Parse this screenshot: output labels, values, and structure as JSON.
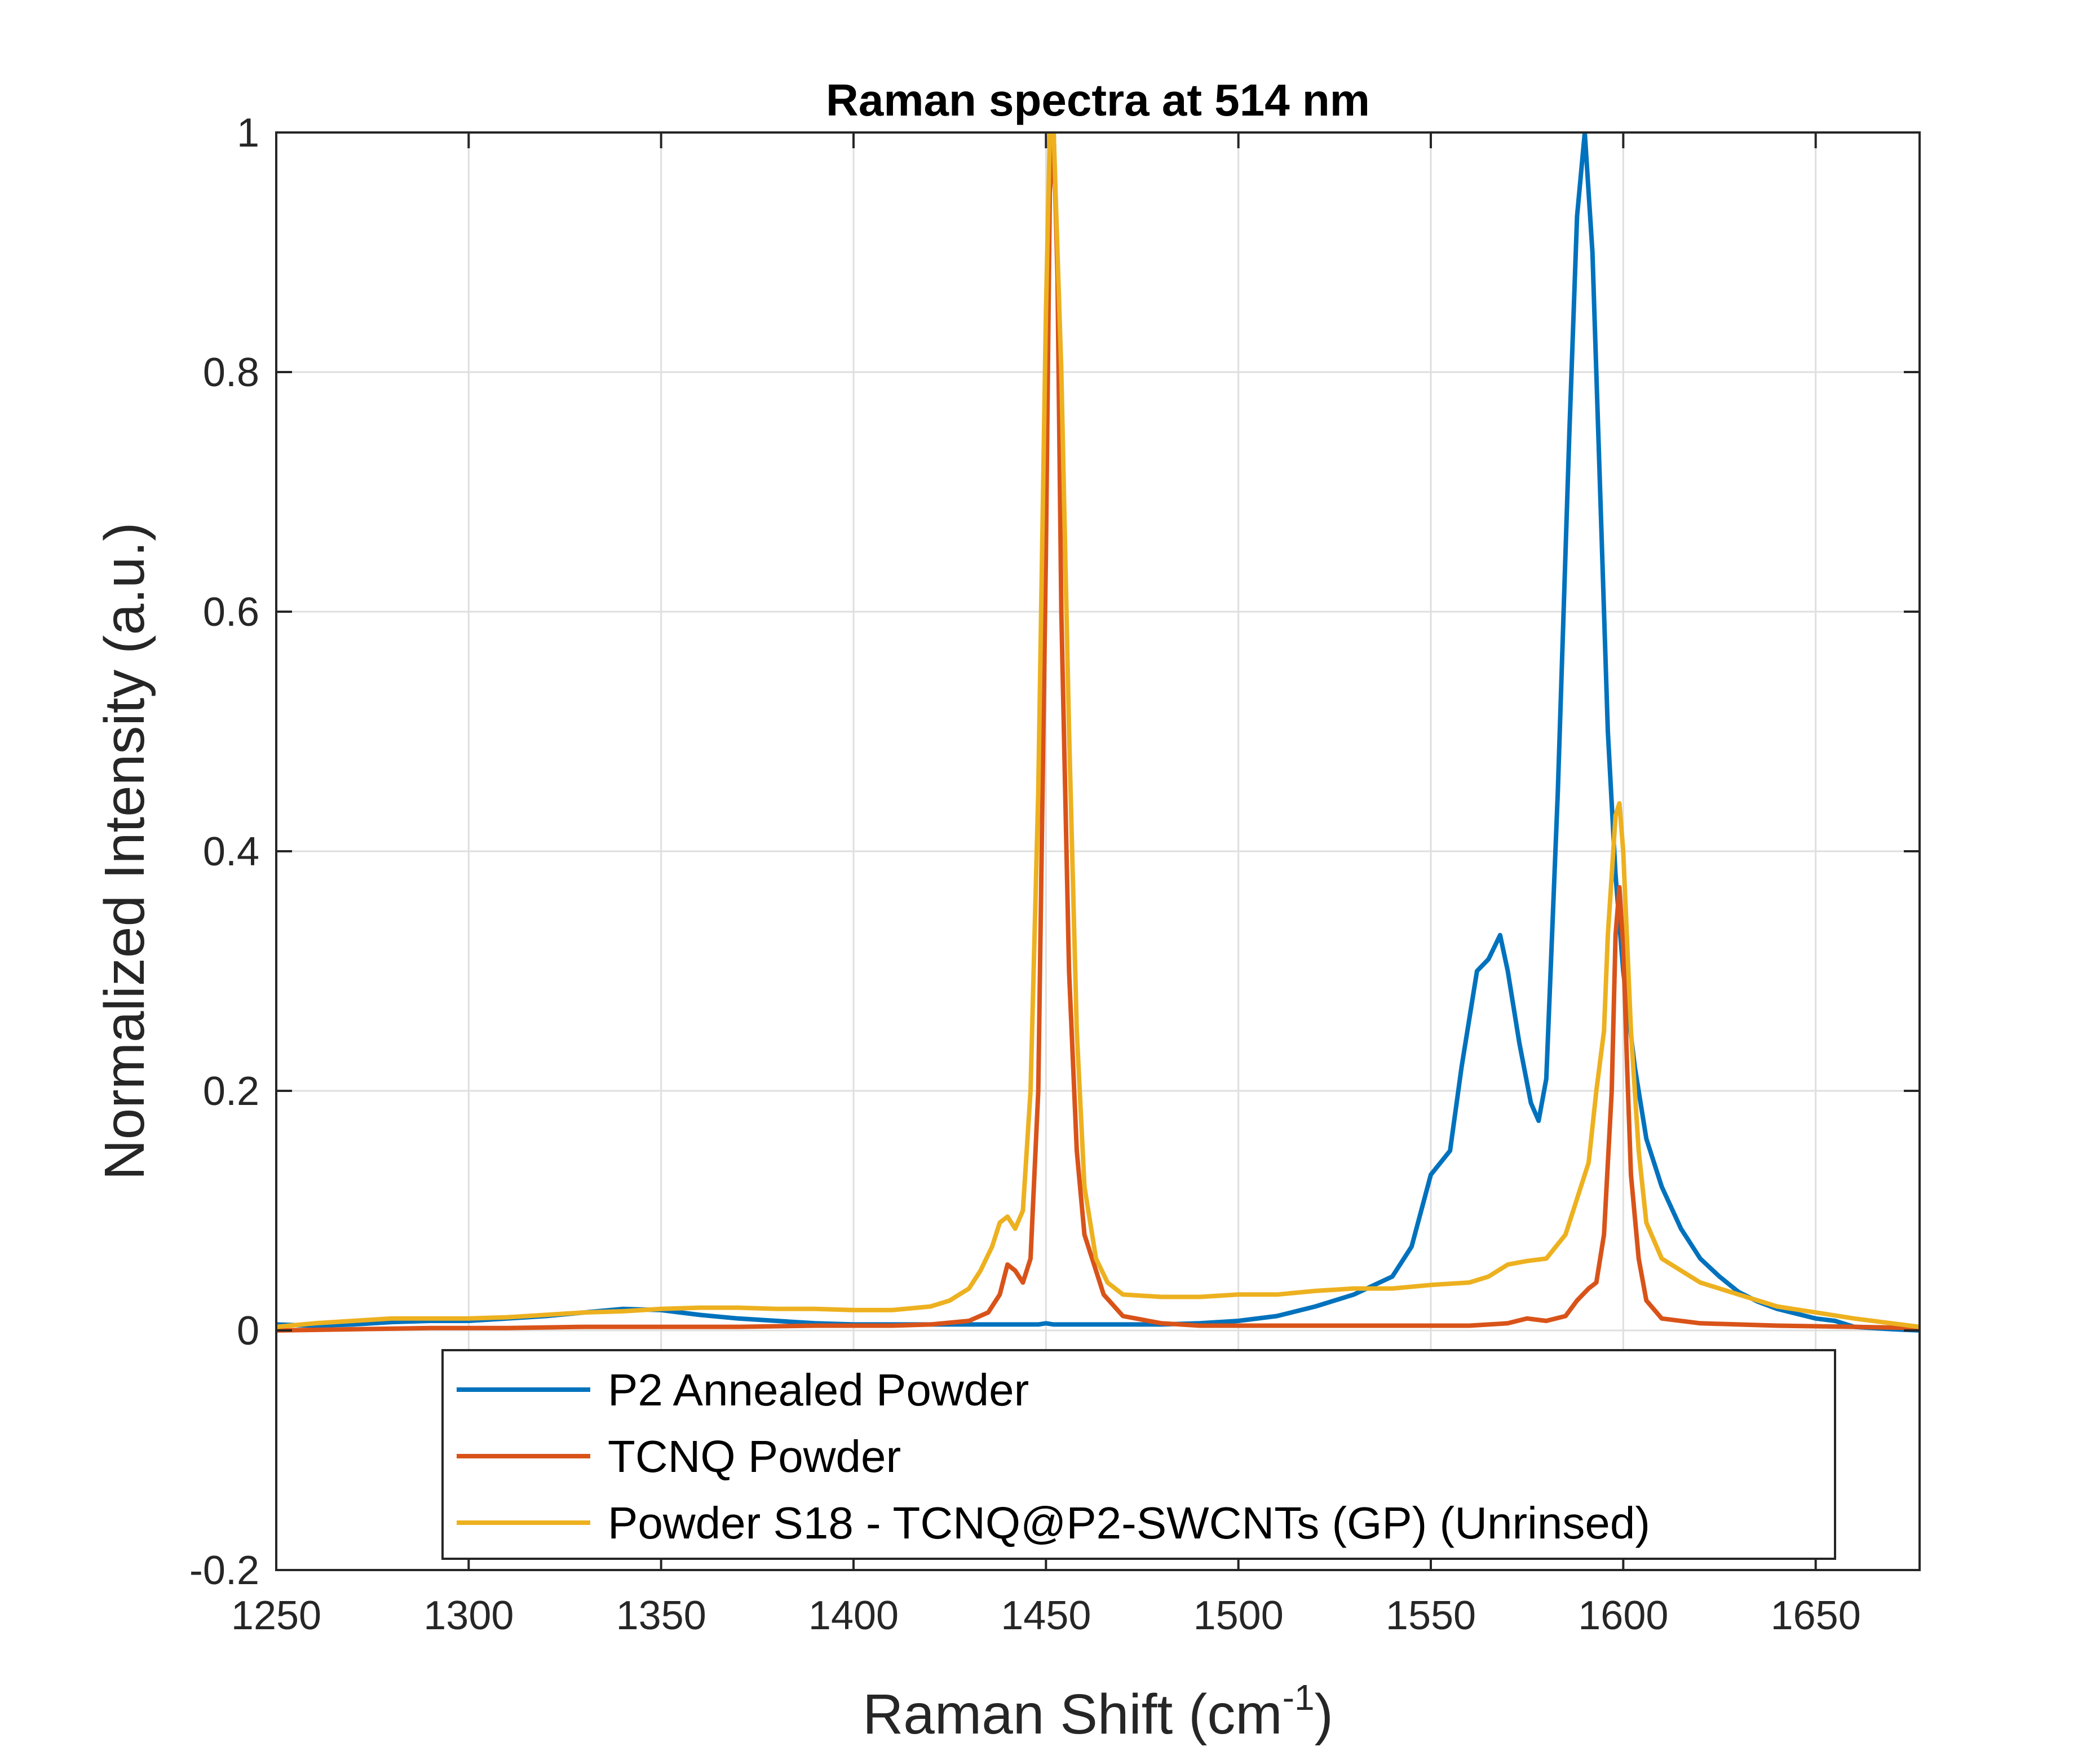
{
  "chart_data": {
    "type": "line",
    "title": "Raman spectra at 514 nm",
    "xlabel": "Raman Shift (cm",
    "xlabel_superscript": "-1",
    "xlabel_suffix": ")",
    "ylabel": "Normalized Intensity (a.u.)",
    "xlim": [
      1250,
      1677
    ],
    "ylim": [
      -0.2,
      1
    ],
    "x_ticks": [
      "1250",
      "1300",
      "1350",
      "1400",
      "1450",
      "1500",
      "1550",
      "1600",
      "1650"
    ],
    "y_ticks": [
      "-0.2",
      "0",
      "0.2",
      "0.4",
      "0.6",
      "0.8",
      "1"
    ],
    "grid": true,
    "legend_position": "bottom-center",
    "series": [
      {
        "name": "P2 Annealed Powder",
        "color": "#0072BD",
        "x": [
          1250,
          1260,
          1270,
          1280,
          1290,
          1300,
          1310,
          1320,
          1330,
          1340,
          1350,
          1360,
          1370,
          1380,
          1390,
          1400,
          1410,
          1420,
          1430,
          1440,
          1445,
          1448,
          1450,
          1452,
          1455,
          1460,
          1470,
          1480,
          1490,
          1500,
          1510,
          1520,
          1530,
          1540,
          1545,
          1550,
          1555,
          1558,
          1562,
          1565,
          1568,
          1570,
          1573,
          1576,
          1578,
          1580,
          1583,
          1586,
          1588,
          1590,
          1592,
          1594,
          1596,
          1598,
          1600,
          1603,
          1606,
          1610,
          1615,
          1620,
          1625,
          1630,
          1635,
          1640,
          1645,
          1650,
          1655,
          1660,
          1665,
          1670,
          1677
        ],
        "y": [
          0.005,
          0.004,
          0.005,
          0.007,
          0.008,
          0.008,
          0.01,
          0.012,
          0.015,
          0.018,
          0.017,
          0.013,
          0.01,
          0.008,
          0.006,
          0.005,
          0.005,
          0.005,
          0.005,
          0.005,
          0.005,
          0.005,
          0.006,
          0.005,
          0.005,
          0.005,
          0.005,
          0.005,
          0.006,
          0.008,
          0.012,
          0.02,
          0.03,
          0.045,
          0.07,
          0.13,
          0.15,
          0.22,
          0.3,
          0.31,
          0.33,
          0.3,
          0.24,
          0.19,
          0.175,
          0.21,
          0.45,
          0.75,
          0.93,
          1.0,
          0.9,
          0.7,
          0.5,
          0.38,
          0.3,
          0.22,
          0.16,
          0.12,
          0.085,
          0.06,
          0.045,
          0.032,
          0.024,
          0.018,
          0.014,
          0.01,
          0.008,
          0.003,
          0.002,
          0.001,
          0.0
        ]
      },
      {
        "name": "TCNQ Powder",
        "color": "#D95319",
        "x": [
          1250,
          1270,
          1290,
          1310,
          1330,
          1350,
          1370,
          1390,
          1410,
          1420,
          1430,
          1435,
          1438,
          1440,
          1442,
          1444,
          1446,
          1448,
          1450,
          1451,
          1452,
          1453,
          1454,
          1456,
          1458,
          1460,
          1465,
          1470,
          1480,
          1490,
          1500,
          1520,
          1540,
          1560,
          1570,
          1575,
          1580,
          1585,
          1588,
          1591,
          1593,
          1595,
          1597,
          1598,
          1599,
          1600,
          1601,
          1602,
          1604,
          1606,
          1610,
          1620,
          1640,
          1660,
          1677
        ],
        "y": [
          0.0,
          0.001,
          0.002,
          0.002,
          0.003,
          0.003,
          0.003,
          0.004,
          0.004,
          0.005,
          0.008,
          0.015,
          0.03,
          0.055,
          0.05,
          0.04,
          0.06,
          0.2,
          0.65,
          0.95,
          1.0,
          0.88,
          0.6,
          0.3,
          0.15,
          0.08,
          0.03,
          0.012,
          0.006,
          0.004,
          0.004,
          0.004,
          0.004,
          0.004,
          0.006,
          0.01,
          0.008,
          0.012,
          0.025,
          0.035,
          0.04,
          0.08,
          0.2,
          0.33,
          0.37,
          0.32,
          0.22,
          0.13,
          0.06,
          0.025,
          0.01,
          0.006,
          0.004,
          0.003,
          0.002
        ]
      },
      {
        "name": "Powder S18 - TCNQ@P2-SWCNTs (GP) (Unrinsed)",
        "color": "#EDB120",
        "x": [
          1250,
          1260,
          1270,
          1280,
          1290,
          1300,
          1310,
          1320,
          1330,
          1340,
          1350,
          1360,
          1370,
          1380,
          1390,
          1400,
          1410,
          1420,
          1425,
          1430,
          1433,
          1436,
          1438,
          1440,
          1442,
          1444,
          1446,
          1448,
          1450,
          1451,
          1452,
          1454,
          1456,
          1458,
          1460,
          1463,
          1466,
          1470,
          1480,
          1490,
          1500,
          1510,
          1520,
          1530,
          1540,
          1550,
          1560,
          1565,
          1570,
          1575,
          1580,
          1585,
          1588,
          1591,
          1593,
          1595,
          1596,
          1597,
          1598,
          1599,
          1600,
          1602,
          1604,
          1606,
          1610,
          1620,
          1630,
          1640,
          1650,
          1660,
          1677
        ],
        "y": [
          0.003,
          0.006,
          0.008,
          0.01,
          0.01,
          0.01,
          0.011,
          0.013,
          0.015,
          0.016,
          0.018,
          0.019,
          0.019,
          0.018,
          0.018,
          0.017,
          0.017,
          0.02,
          0.025,
          0.035,
          0.05,
          0.07,
          0.09,
          0.095,
          0.085,
          0.1,
          0.2,
          0.45,
          0.85,
          1.0,
          1.0,
          0.8,
          0.5,
          0.25,
          0.12,
          0.06,
          0.04,
          0.03,
          0.028,
          0.028,
          0.03,
          0.03,
          0.033,
          0.035,
          0.035,
          0.038,
          0.04,
          0.045,
          0.055,
          0.058,
          0.06,
          0.08,
          0.11,
          0.14,
          0.2,
          0.25,
          0.33,
          0.38,
          0.43,
          0.44,
          0.4,
          0.25,
          0.15,
          0.09,
          0.06,
          0.04,
          0.03,
          0.02,
          0.015,
          0.01,
          0.003
        ]
      }
    ]
  }
}
